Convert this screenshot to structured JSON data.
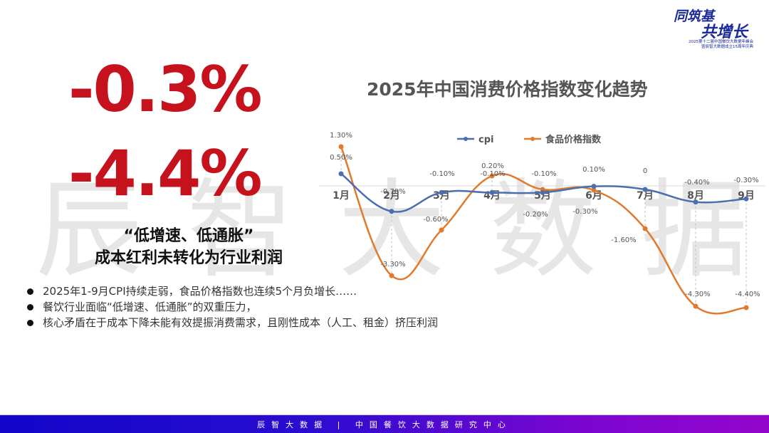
{
  "headline": {
    "cpi_value": "-0.3%",
    "food_value": "-4.4%",
    "slogan_line1": "“低增速、低通胀”",
    "slogan_line2": "成本红利未转化为行业利润"
  },
  "bullets": [
    "2025年1-9月CPI持续走弱，食品价格指数也连续5个月负增长……",
    "餐饮行业面临“低增速、低通胀”的双重压力，",
    "核心矛盾在于成本下降未能有效提振消费需求，且刚性成本（人工、租金）挤压利润"
  ],
  "watermark": [
    "辰",
    "智",
    "大",
    "数",
    "据"
  ],
  "logo": {
    "line1": "同筑基",
    "line2": "共增长",
    "line3": "2025第十二届中国餐饮大数据年峰会",
    "line4": "暨辰智大数据成立15周年庆典"
  },
  "footer": {
    "text": "辰智大数据 | 中国餐饮大数据研究中心"
  },
  "colors": {
    "headline_red": "#c6121c",
    "cpi_line": "#4a6fb0",
    "food_line": "#e07a2e",
    "footer_start": "#1206c8",
    "footer_end": "#9406cc"
  },
  "chart_data": {
    "type": "line",
    "title": "2025年中国消费价格指数变化趋势",
    "categories": [
      "1月",
      "2月",
      "3月",
      "4月",
      "5月",
      "6月",
      "7月",
      "8月",
      "9月"
    ],
    "series": [
      {
        "name": "cpi",
        "values": [
          0.5,
          -0.7,
          -0.1,
          -0.1,
          -0.1,
          0.1,
          0,
          -0.4,
          -0.3
        ],
        "labels": [
          "0.50%",
          "-0.70%",
          "-0.10%",
          "-0.10%",
          "-0.10%",
          "0.10%",
          "0",
          "-0.40%",
          "-0.30%"
        ],
        "color": "#4a6fb0"
      },
      {
        "name": "食品价格指数",
        "values": [
          1.3,
          -3.3,
          -0.6,
          0.2,
          -0.2,
          -0.3,
          -1.6,
          -4.3,
          -4.4
        ],
        "labels": [
          "1.30%",
          "-3.30%",
          "-0.60%",
          "0.20%",
          "-0.20%",
          "-0.30%",
          "-1.60%",
          "-4.30%",
          "-4.40%"
        ],
        "color": "#e07a2e"
      }
    ],
    "xlabel": "",
    "ylabel": "",
    "unit": "%",
    "legend_position": "top",
    "grid": false,
    "smooth": true
  }
}
